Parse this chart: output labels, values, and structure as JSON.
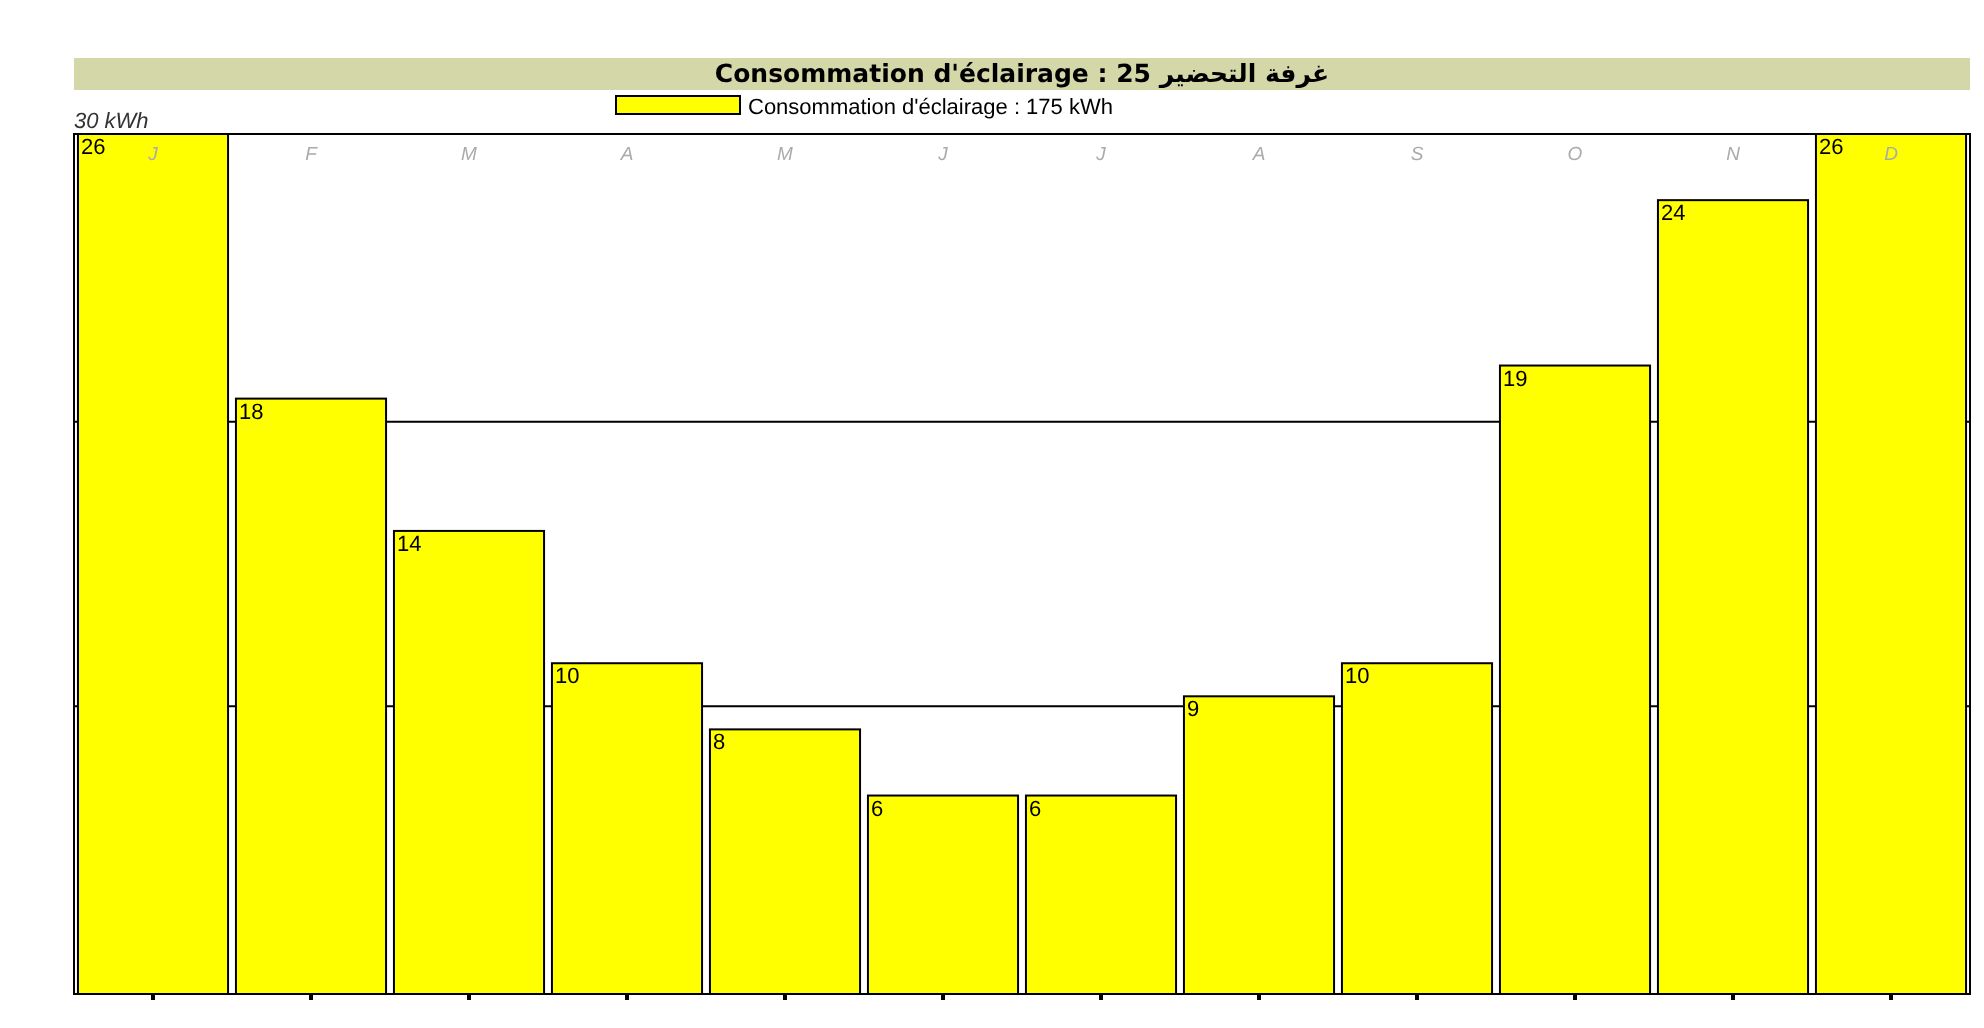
{
  "chart_data": {
    "type": "bar",
    "title": "Consommation d'éclairage : 25 غرفة التحضير",
    "categories": [
      "J",
      "F",
      "M",
      "A",
      "M",
      "J",
      "J",
      "A",
      "S",
      "O",
      "N",
      "D"
    ],
    "series": [
      {
        "name": "Consommation d'éclairage : 175 kWh",
        "color": "#ffff00",
        "values": [
          26,
          18,
          14,
          10,
          8,
          6,
          6,
          9,
          10,
          19,
          24,
          26
        ]
      }
    ],
    "data_labels": true,
    "ref_lines": [
      {
        "axis": "y",
        "value": 8.7,
        "color": "#000000"
      },
      {
        "axis": "y",
        "value": 17.3,
        "color": "#000000"
      }
    ],
    "annotations": [
      "30 kWh"
    ],
    "legend": "top"
  }
}
